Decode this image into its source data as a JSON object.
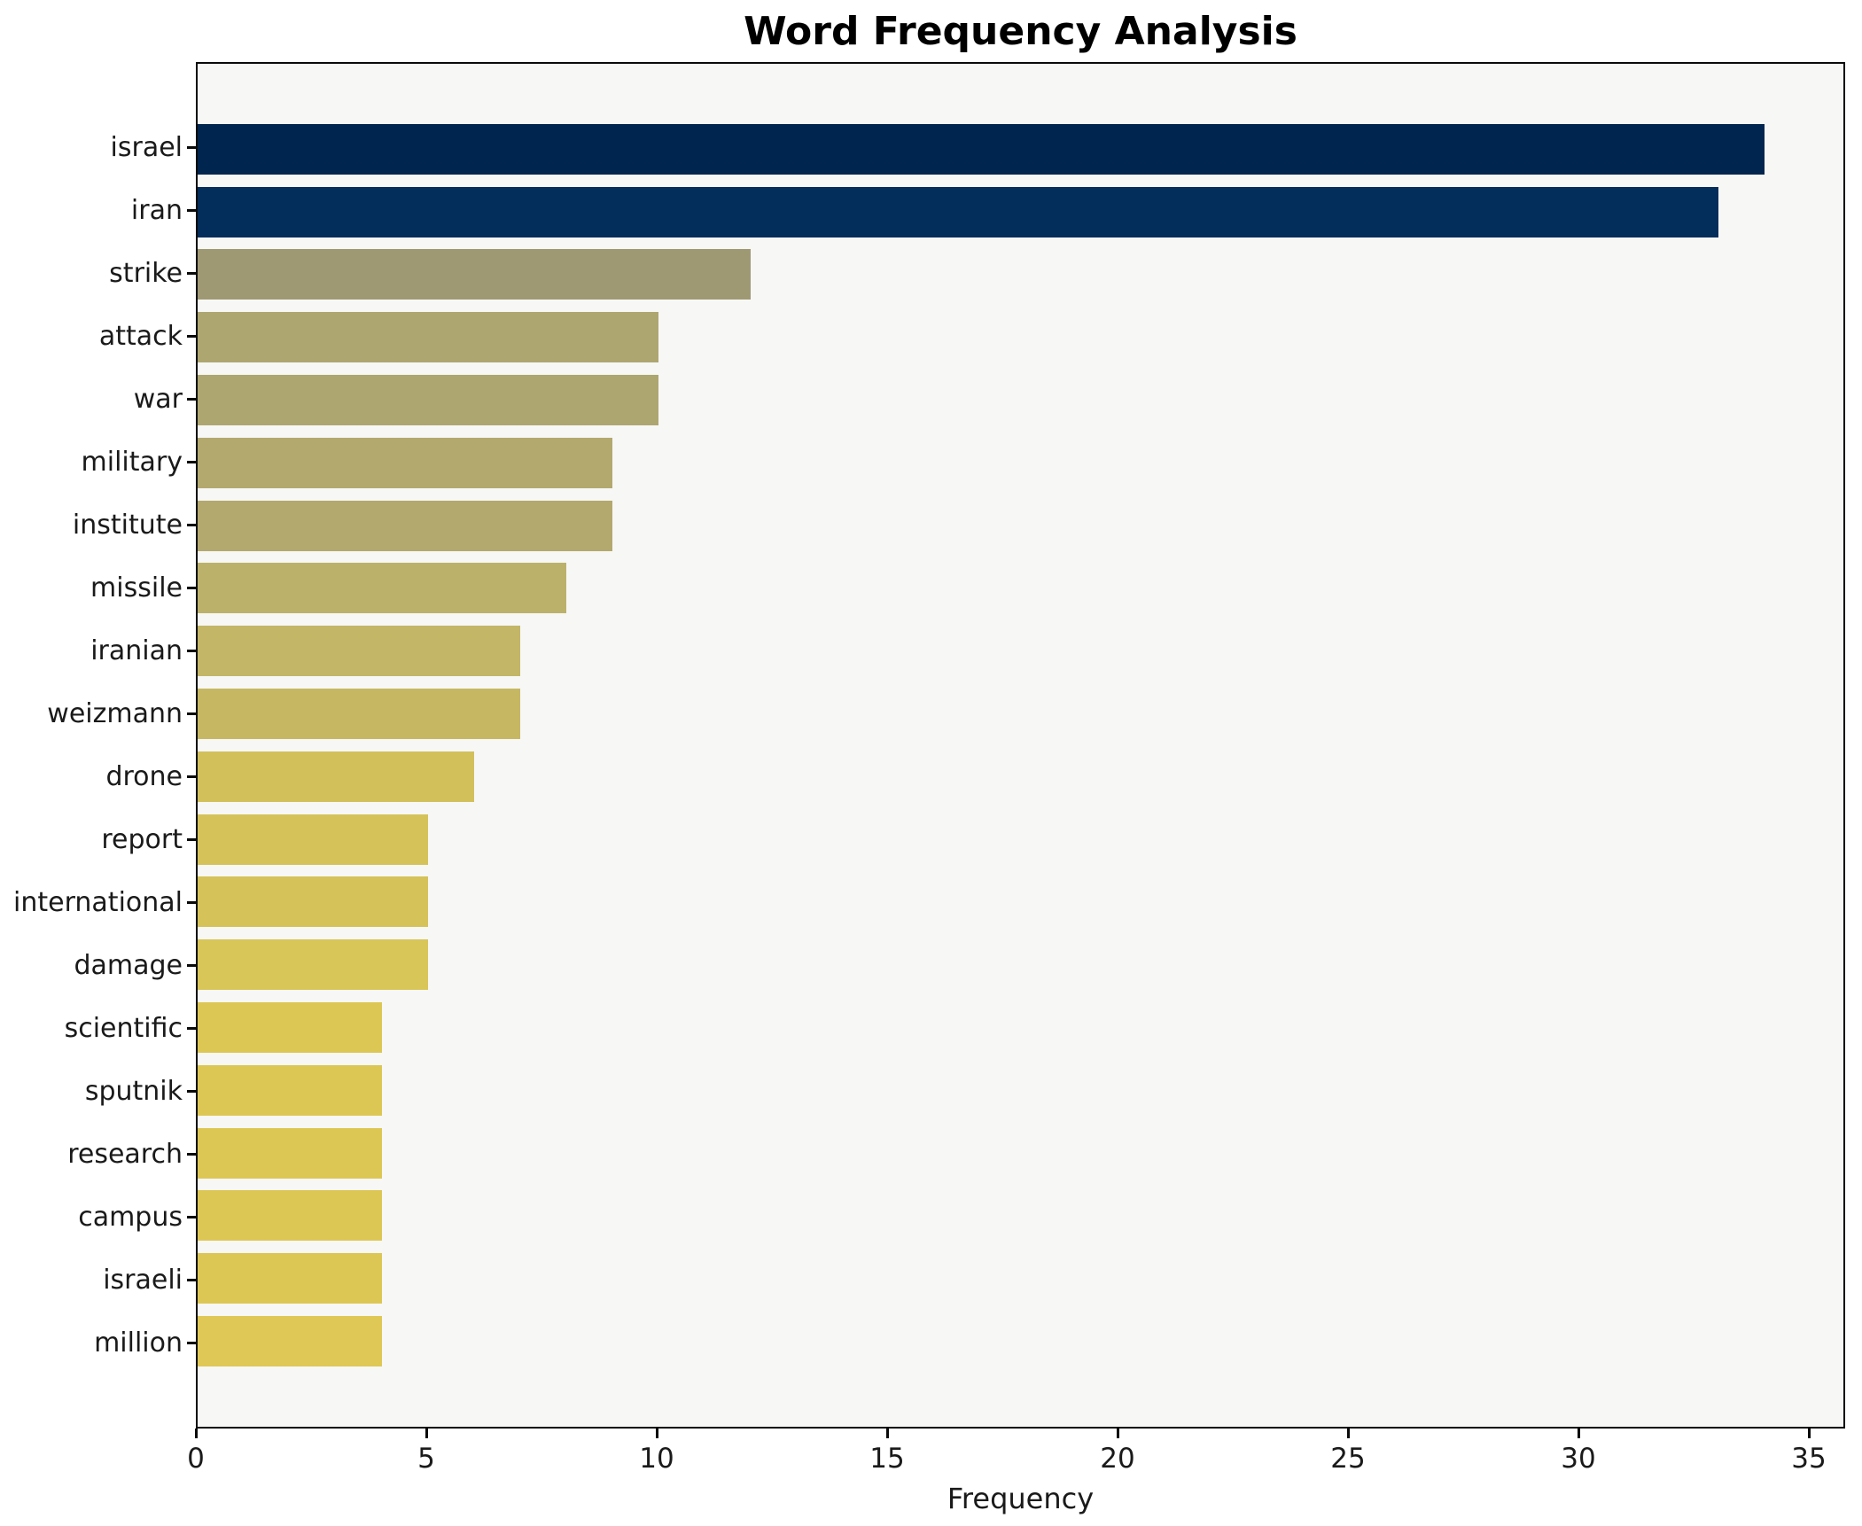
{
  "chart_data": {
    "type": "bar",
    "orientation": "horizontal",
    "title": "Word Frequency Analysis",
    "xlabel": "Frequency",
    "ylabel": "",
    "categories": [
      "israel",
      "iran",
      "strike",
      "attack",
      "war",
      "military",
      "institute",
      "missile",
      "iranian",
      "weizmann",
      "drone",
      "report",
      "international",
      "damage",
      "scientific",
      "sputnik",
      "research",
      "campus",
      "israeli",
      "million"
    ],
    "values": [
      34,
      33,
      12,
      10,
      10,
      9,
      9,
      8,
      7,
      7,
      6,
      5,
      5,
      5,
      4,
      4,
      4,
      4,
      4,
      4
    ],
    "bar_colors": [
      "#00254e",
      "#032d5b",
      "#9f9973",
      "#aea671",
      "#aea671",
      "#b3a96f",
      "#b3a96e",
      "#bcb16a",
      "#c3b666",
      "#c6b863",
      "#d2c05b",
      "#d5c35a",
      "#d5c359",
      "#d8c658",
      "#ddc754",
      "#ddc754",
      "#ddc754",
      "#ddc754",
      "#ddc754",
      "#dfc855"
    ],
    "xlim": [
      0,
      35.8
    ],
    "x_ticks": [
      0,
      5,
      10,
      15,
      20,
      25,
      30,
      35
    ],
    "grid": false,
    "legend": null,
    "plot_background": "#f7f7f6",
    "figure_background": "#ffffff"
  }
}
